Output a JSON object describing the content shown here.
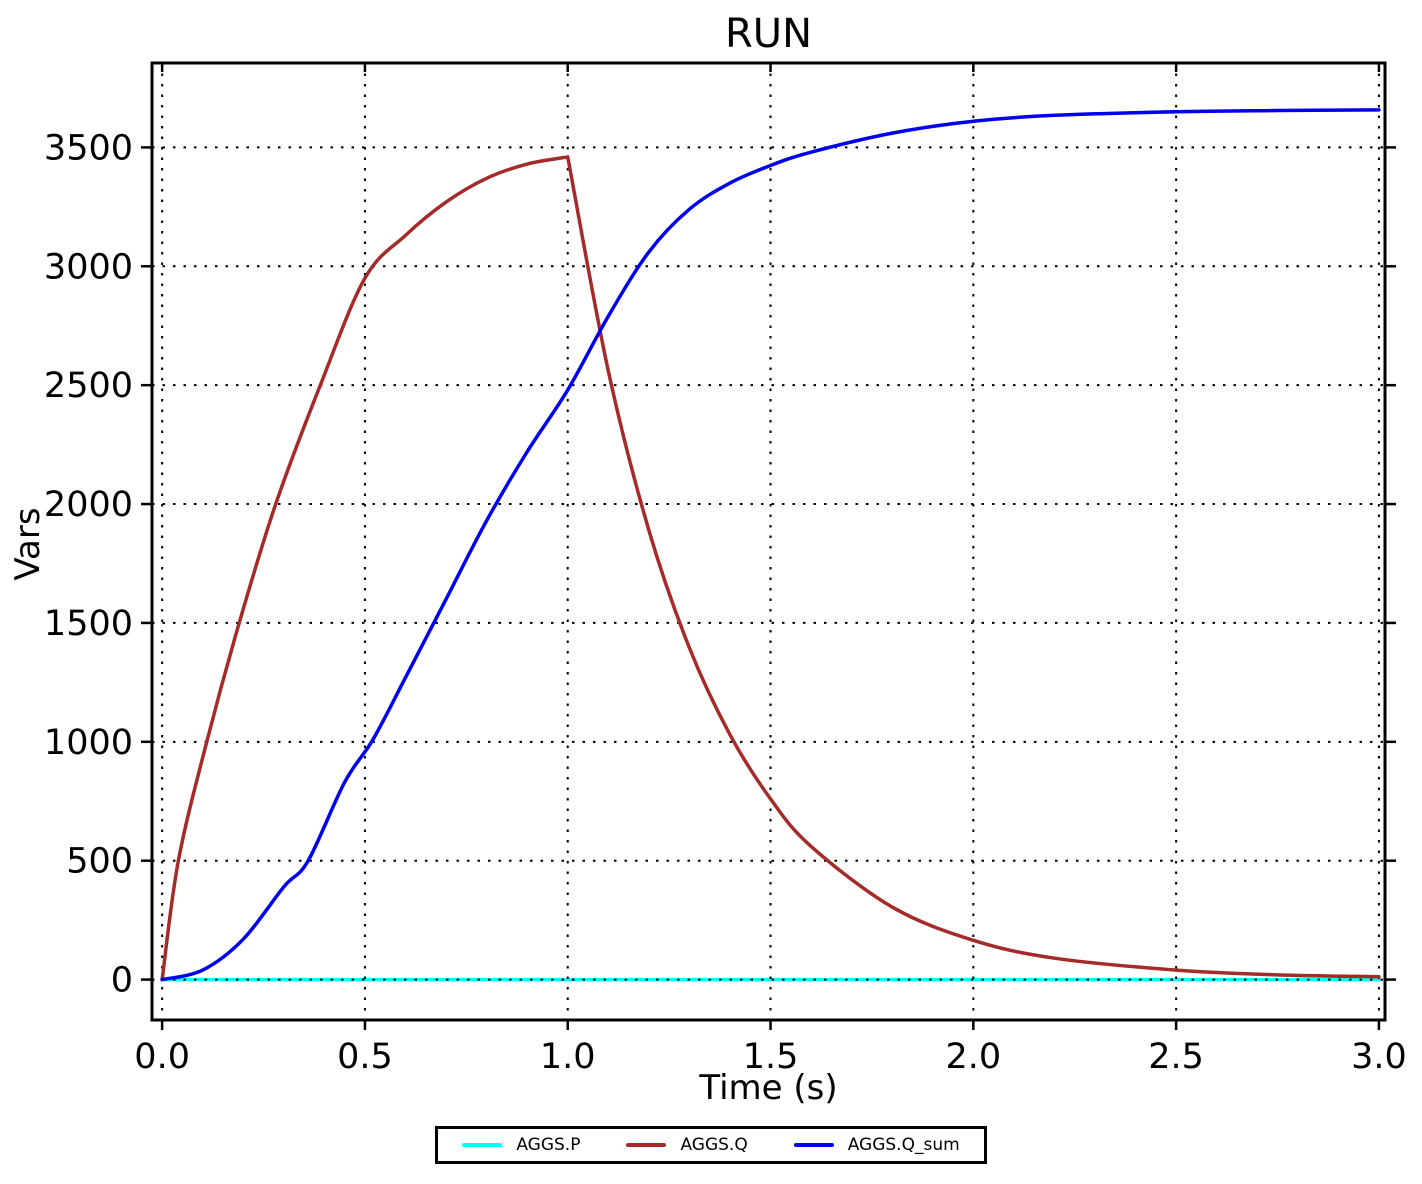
{
  "figure": {
    "background": "#ffffff"
  },
  "chart_data": {
    "type": "line",
    "title": "RUN",
    "xlabel": "Time (s)",
    "ylabel": "Vars",
    "xlim": [
      -0.025,
      3.015
    ],
    "ylim": [
      -170,
      3855
    ],
    "grid": {
      "visible": true,
      "style": "dotted",
      "color": "#000000"
    },
    "legend_position": "bottom-center",
    "xticks": {
      "values": [
        0.0,
        0.5,
        1.0,
        1.5,
        2.0,
        2.5,
        3.0
      ],
      "labels": [
        "0.0",
        "0.5",
        "1.0",
        "1.5",
        "2.0",
        "2.5",
        "3.0"
      ]
    },
    "yticks": {
      "values": [
        0,
        500,
        1000,
        1500,
        2000,
        2500,
        3000,
        3500
      ],
      "labels": [
        "0",
        "500",
        "1000",
        "1500",
        "2000",
        "2500",
        "3000",
        "3500"
      ]
    },
    "series": [
      {
        "name": "AGGS.P",
        "color": "#00ffff",
        "x": [
          0,
          3.0
        ],
        "y": [
          0,
          0
        ]
      },
      {
        "name": "AGGS.Q",
        "color": "#a52a2a",
        "corner_index": 11,
        "x": [
          0,
          0.04,
          0.11,
          0.19,
          0.28,
          0.39,
          0.5,
          0.6,
          0.7,
          0.8,
          0.9,
          1.0,
          1.1,
          1.2,
          1.3,
          1.4,
          1.5,
          1.6,
          1.8,
          2.0,
          2.2,
          2.5,
          2.75,
          3.0
        ],
        "y": [
          0,
          500,
          1000,
          1500,
          2000,
          2500,
          2950,
          3130,
          3270,
          3370,
          3430,
          3460,
          2560,
          1890,
          1395,
          1030,
          760,
          560,
          305,
          165,
          90,
          40,
          20,
          12
        ]
      },
      {
        "name": "AGGS.Q_sum",
        "color": "#0000ee",
        "x": [
          0,
          0.1,
          0.2,
          0.3,
          0.36,
          0.45,
          0.52,
          0.6,
          0.7,
          0.8,
          0.9,
          1.0,
          1.1,
          1.2,
          1.3,
          1.4,
          1.5,
          1.6,
          1.8,
          2.0,
          2.2,
          2.5,
          2.75,
          3.0
        ],
        "y": [
          0,
          40,
          170,
          390,
          500,
          830,
          1010,
          1270,
          1600,
          1930,
          2220,
          2480,
          2790,
          3060,
          3240,
          3350,
          3424,
          3480,
          3560,
          3610,
          3635,
          3650,
          3655,
          3658
        ]
      }
    ]
  }
}
